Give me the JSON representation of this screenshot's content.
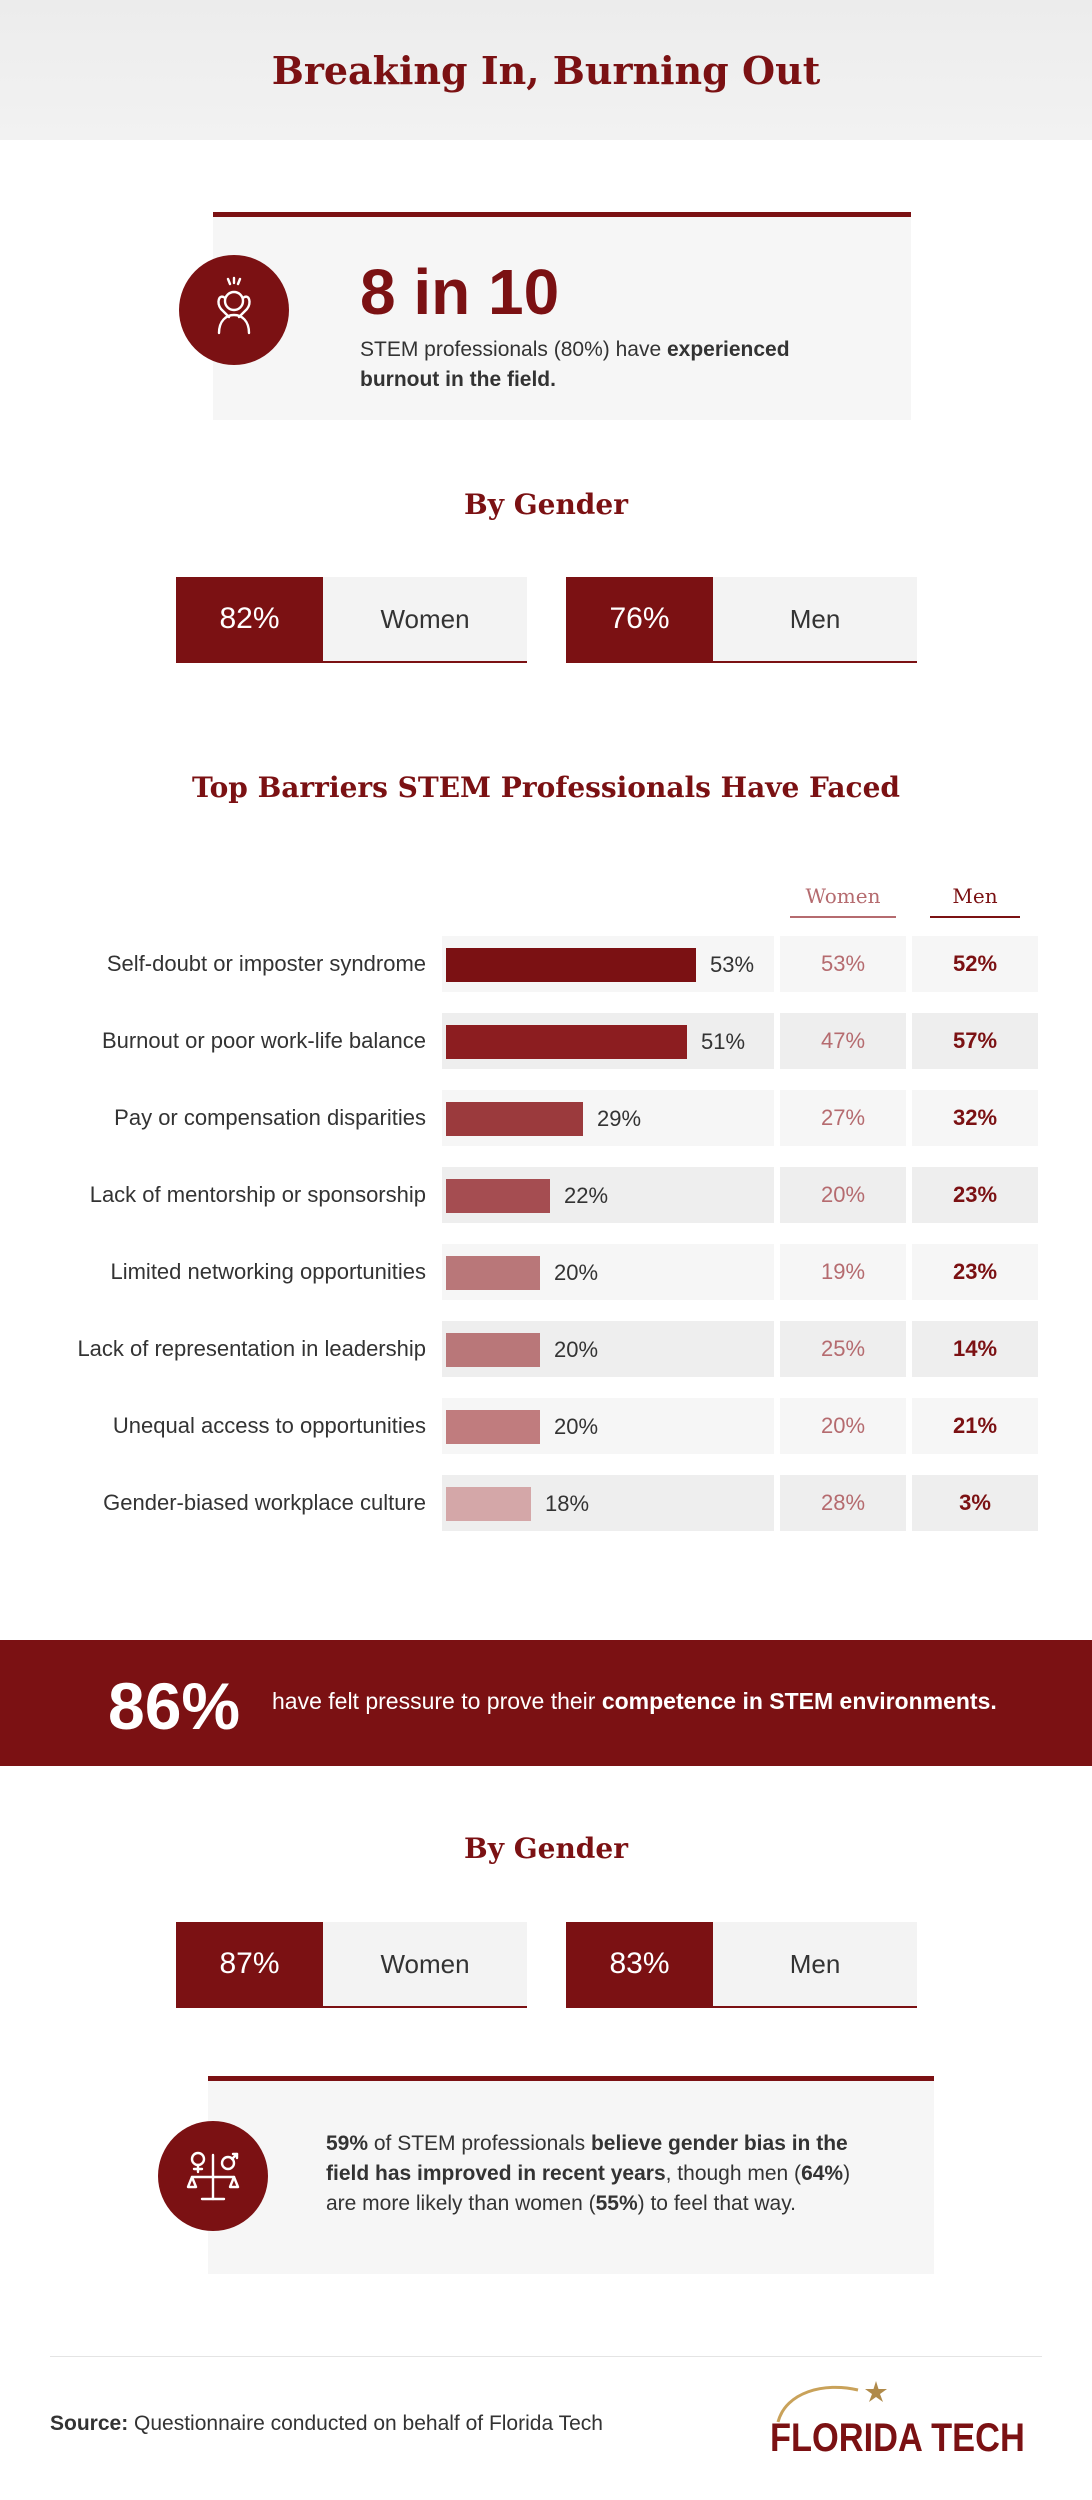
{
  "title": "Breaking In, Burning Out",
  "burnout": {
    "headline": "8 in 10",
    "text_plain": "STEM professionals (80%) have ",
    "text_bold": "experienced burnout in the field."
  },
  "gender_burnout": {
    "heading": "By Gender",
    "women": {
      "value": "82%",
      "label": "Women"
    },
    "men": {
      "value": "76%",
      "label": "Men"
    }
  },
  "barriers_heading": "Top Barriers STEM Professionals Have Faced",
  "chart_data": {
    "type": "bar",
    "title": "Top Barriers STEM Professionals Have Faced",
    "orientation": "horizontal",
    "categories": [
      "Self-doubt or imposter syndrome",
      "Burnout or poor work-life balance",
      "Pay or compensation disparities",
      "Lack of mentorship or sponsorship",
      "Limited networking opportunities",
      "Lack of representation in leadership",
      "Unequal access to opportunities",
      "Gender-biased workplace culture"
    ],
    "values": [
      53,
      51,
      29,
      22,
      20,
      20,
      20,
      18
    ],
    "value_labels": [
      "53%",
      "51%",
      "29%",
      "22%",
      "20%",
      "20%",
      "20%",
      "18%"
    ],
    "bar_colors": [
      "#7b1113",
      "#8c1d20",
      "#9b3a3d",
      "#a54d51",
      "#b97779",
      "#b97779",
      "#c07c7e",
      "#d4a7a8"
    ],
    "xlim": [
      0,
      100
    ],
    "breakdown_headers": [
      "Women",
      "Men"
    ],
    "series": [
      {
        "name": "Women",
        "values": [
          53,
          47,
          27,
          20,
          19,
          25,
          20,
          28
        ],
        "labels": [
          "53%",
          "47%",
          "27%",
          "20%",
          "19%",
          "25%",
          "20%",
          "28%"
        ]
      },
      {
        "name": "Men",
        "values": [
          52,
          57,
          32,
          23,
          23,
          14,
          21,
          3
        ],
        "labels": [
          "52%",
          "57%",
          "32%",
          "23%",
          "23%",
          "14%",
          "21%",
          "3%"
        ]
      }
    ]
  },
  "pressure": {
    "value": "86%",
    "text_plain": "have felt pressure to prove their ",
    "text_bold": "competence in STEM environments."
  },
  "gender_pressure": {
    "heading": "By Gender",
    "women": {
      "value": "87%",
      "label": "Women"
    },
    "men": {
      "value": "83%",
      "label": "Men"
    }
  },
  "bias": {
    "p1_bold": "59%",
    "p2": " of STEM professionals ",
    "p3_bold": "believe gender bias in the field has improved in recent years",
    "p4": ", though men (",
    "p5_bold": "64%",
    "p6": ") are more likely than women (",
    "p7_bold": "55%",
    "p8": ") to feel that way."
  },
  "source": {
    "label": "Source:",
    "text": " Questionnaire conducted on behalf of Florida Tech"
  },
  "logo": {
    "text": "FLORIDA TECH",
    "icon": "star-arc-logo-icon"
  },
  "colors": {
    "primary": "#7b1113",
    "women_text": "#b56b6f",
    "cell_light": "#f6f6f6",
    "cell_dark": "#eeeeee"
  }
}
